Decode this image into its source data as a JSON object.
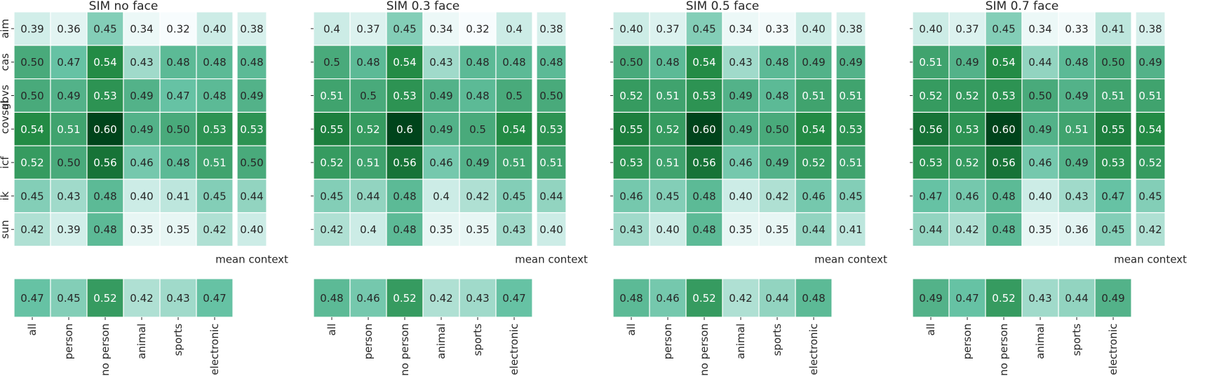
{
  "row_labels": [
    "aim",
    "cas",
    "gbvs",
    "covsal",
    "icf",
    "ik",
    "sun"
  ],
  "col_labels": [
    "all",
    "person",
    "no person",
    "animal",
    "sports",
    "electronic"
  ],
  "mean_label": "mean context",
  "colors": {
    "low": "#f7fcfd",
    "mid1": "#ccece6",
    "mid2": "#66c2a4",
    "mid3": "#238b45",
    "high": "#00441b"
  },
  "chart_data": [
    {
      "type": "heatmap",
      "title": "SIM no face",
      "rows": [
        "aim",
        "cas",
        "covsal",
        "gbvs",
        "icf",
        "ik",
        "sun"
      ],
      "columns": [
        "all",
        "person",
        "no person",
        "animal",
        "sports",
        "electronic"
      ],
      "values": [
        [
          "0.39",
          "0.36",
          "0.45",
          "0.34",
          "0.32",
          "0.40"
        ],
        [
          "0.50",
          "0.47",
          "0.54",
          "0.43",
          "0.48",
          "0.48"
        ],
        [
          "0.50",
          "0.49",
          "0.53",
          "0.49",
          "0.47",
          "0.48"
        ],
        [
          "0.54",
          "0.51",
          "0.60",
          "0.49",
          "0.50",
          "0.53"
        ],
        [
          "0.52",
          "0.50",
          "0.56",
          "0.46",
          "0.48",
          "0.51"
        ],
        [
          "0.45",
          "0.43",
          "0.48",
          "0.40",
          "0.41",
          "0.45"
        ],
        [
          "0.42",
          "0.39",
          "0.48",
          "0.35",
          "0.35",
          "0.42"
        ]
      ],
      "mean_context": [
        "0.38",
        "0.48",
        "0.49",
        "0.53",
        "0.50",
        "0.44",
        "0.40"
      ],
      "mean_method": [
        "0.47",
        "0.45",
        "0.52",
        "0.42",
        "0.43",
        "0.47"
      ]
    },
    {
      "type": "heatmap",
      "title": "SIM 0.3 face",
      "rows": [
        "aim",
        "cas",
        "covsal",
        "gbvs",
        "icf",
        "ik",
        "sun"
      ],
      "columns": [
        "all",
        "person",
        "no person",
        "animal",
        "sports",
        "electronic"
      ],
      "values": [
        [
          "0.4",
          "0.37",
          "0.45",
          "0.34",
          "0.32",
          "0.4"
        ],
        [
          "0.5",
          "0.48",
          "0.54",
          "0.43",
          "0.48",
          "0.48"
        ],
        [
          "0.51",
          "0.5",
          "0.53",
          "0.49",
          "0.48",
          "0.5"
        ],
        [
          "0.55",
          "0.52",
          "0.6",
          "0.49",
          "0.5",
          "0.54"
        ],
        [
          "0.52",
          "0.51",
          "0.56",
          "0.46",
          "0.49",
          "0.51"
        ],
        [
          "0.45",
          "0.44",
          "0.48",
          "0.4",
          "0.42",
          "0.45"
        ],
        [
          "0.42",
          "0.4",
          "0.48",
          "0.35",
          "0.35",
          "0.43"
        ]
      ],
      "mean_context": [
        "0.38",
        "0.48",
        "0.50",
        "0.53",
        "0.51",
        "0.44",
        "0.40"
      ],
      "mean_method": [
        "0.48",
        "0.46",
        "0.52",
        "0.42",
        "0.43",
        "0.47"
      ]
    },
    {
      "type": "heatmap",
      "title": "SIM 0.5 face",
      "rows": [
        "aim",
        "cas",
        "covsal",
        "gbvs",
        "icf",
        "ik",
        "sun"
      ],
      "columns": [
        "all",
        "person",
        "no person",
        "animal",
        "sports",
        "electronic"
      ],
      "values": [
        [
          "0.40",
          "0.37",
          "0.45",
          "0.34",
          "0.33",
          "0.40"
        ],
        [
          "0.50",
          "0.48",
          "0.54",
          "0.43",
          "0.48",
          "0.49"
        ],
        [
          "0.52",
          "0.51",
          "0.53",
          "0.49",
          "0.48",
          "0.51"
        ],
        [
          "0.55",
          "0.52",
          "0.60",
          "0.49",
          "0.50",
          "0.54"
        ],
        [
          "0.53",
          "0.51",
          "0.56",
          "0.46",
          "0.49",
          "0.52"
        ],
        [
          "0.46",
          "0.45",
          "0.48",
          "0.40",
          "0.42",
          "0.46"
        ],
        [
          "0.43",
          "0.40",
          "0.48",
          "0.35",
          "0.35",
          "0.44"
        ]
      ],
      "mean_context": [
        "0.38",
        "0.49",
        "0.51",
        "0.53",
        "0.51",
        "0.45",
        "0.41"
      ],
      "mean_method": [
        "0.48",
        "0.46",
        "0.52",
        "0.42",
        "0.44",
        "0.48"
      ]
    },
    {
      "type": "heatmap",
      "title": "SIM 0.7 face",
      "rows": [
        "aim",
        "cas",
        "covsal",
        "gbvs",
        "icf",
        "ik",
        "sun"
      ],
      "columns": [
        "all",
        "person",
        "no person",
        "animal",
        "sports",
        "electronic"
      ],
      "values": [
        [
          "0.40",
          "0.37",
          "0.45",
          "0.34",
          "0.33",
          "0.41"
        ],
        [
          "0.51",
          "0.49",
          "0.54",
          "0.44",
          "0.48",
          "0.50"
        ],
        [
          "0.52",
          "0.52",
          "0.53",
          "0.50",
          "0.49",
          "0.51"
        ],
        [
          "0.56",
          "0.53",
          "0.60",
          "0.49",
          "0.51",
          "0.55"
        ],
        [
          "0.53",
          "0.52",
          "0.56",
          "0.46",
          "0.49",
          "0.53"
        ],
        [
          "0.47",
          "0.46",
          "0.48",
          "0.40",
          "0.43",
          "0.47"
        ],
        [
          "0.44",
          "0.42",
          "0.48",
          "0.35",
          "0.36",
          "0.45"
        ]
      ],
      "mean_context": [
        "0.38",
        "0.49",
        "0.51",
        "0.54",
        "0.52",
        "0.45",
        "0.42"
      ],
      "mean_method": [
        "0.49",
        "0.47",
        "0.52",
        "0.43",
        "0.44",
        "0.49"
      ]
    }
  ]
}
